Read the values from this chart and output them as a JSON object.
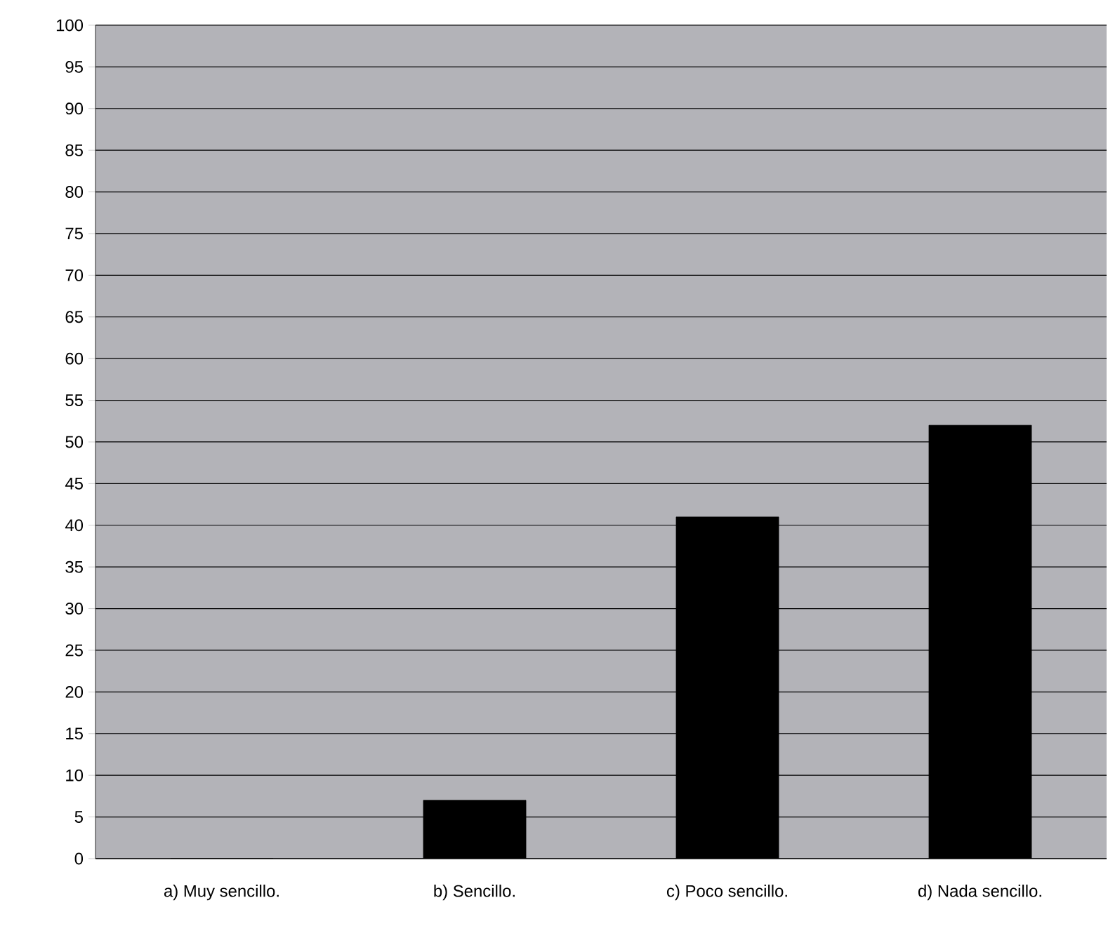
{
  "chart_data": {
    "type": "bar",
    "categories": [
      "a) Muy sencillo.",
      "b) Sencillo.",
      "c) Poco sencillo.",
      "d) Nada sencillo."
    ],
    "values": [
      0,
      7,
      41,
      52
    ],
    "color": "#000000",
    "ylim": [
      0,
      100
    ],
    "yticks": [
      0,
      5,
      10,
      15,
      20,
      25,
      30,
      35,
      40,
      45,
      50,
      55,
      60,
      65,
      70,
      75,
      80,
      85,
      90,
      95,
      100
    ],
    "grid": "y"
  }
}
